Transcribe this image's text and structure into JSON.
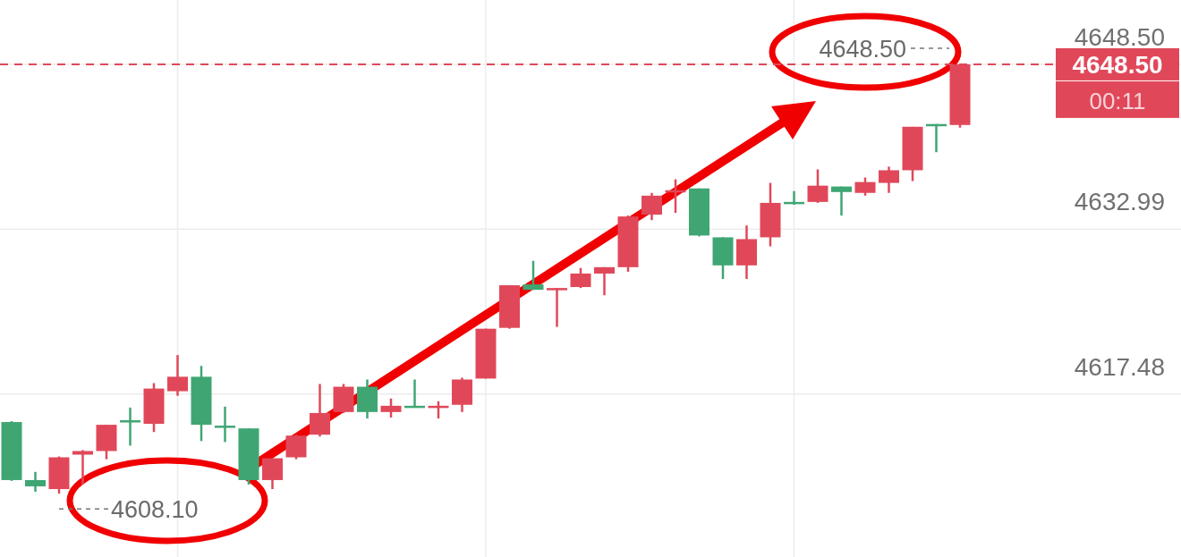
{
  "chart_data": {
    "type": "candlestick",
    "categories": [
      null,
      null,
      null,
      null,
      null,
      null,
      null,
      null,
      null,
      null,
      null,
      null,
      null,
      null,
      null,
      null,
      null,
      null,
      null,
      null,
      null,
      null,
      null,
      null,
      null,
      null,
      null,
      null,
      null,
      null,
      null,
      null,
      null,
      null,
      null,
      null,
      null,
      null,
      null,
      null,
      null
    ],
    "ohlc": [
      [
        4614.84,
        4614.92,
        4609.3,
        4609.38
      ],
      [
        4609.38,
        4610.15,
        4608.28,
        4608.79
      ],
      [
        4608.53,
        4611.6,
        4608.1,
        4611.52
      ],
      [
        4611.77,
        4612.2,
        4608.96,
        4612.11
      ],
      [
        4612.11,
        4614.58,
        4611.34,
        4614.58
      ],
      [
        4615.01,
        4616.2,
        4612.62,
        4614.92
      ],
      [
        4614.67,
        4618.5,
        4613.9,
        4617.99
      ],
      [
        4617.74,
        4621.14,
        4617.31,
        4619.1
      ],
      [
        4619.1,
        4620.12,
        4613.05,
        4614.58
      ],
      [
        4614.5,
        4616.29,
        4612.96,
        4614.33
      ],
      [
        4614.24,
        4614.24,
        4608.96,
        4609.38
      ],
      [
        4609.38,
        4611.43,
        4608.53,
        4611.43
      ],
      [
        4611.52,
        4613.65,
        4611.34,
        4613.56
      ],
      [
        4613.65,
        4618.42,
        4613.47,
        4615.69
      ],
      [
        4615.78,
        4618.42,
        4615.69,
        4618.16
      ],
      [
        4618.16,
        4618.84,
        4615.18,
        4615.78
      ],
      [
        4615.78,
        4617.05,
        4615.26,
        4616.37
      ],
      [
        4616.37,
        4618.84,
        4616.2,
        4616.2
      ],
      [
        4616.29,
        4616.8,
        4615.18,
        4616.37
      ],
      [
        4616.46,
        4619.01,
        4615.78,
        4618.84
      ],
      [
        4618.93,
        4623.62,
        4618.93,
        4623.62
      ],
      [
        4623.7,
        4627.71,
        4623.62,
        4627.71
      ],
      [
        4627.79,
        4630.01,
        4627.28,
        4627.28
      ],
      [
        4627.28,
        4627.45,
        4623.79,
        4627.45
      ],
      [
        4627.54,
        4629.33,
        4627.45,
        4628.81
      ],
      [
        4628.81,
        4629.41,
        4626.77,
        4629.41
      ],
      [
        4629.41,
        4634.27,
        4628.98,
        4634.18
      ],
      [
        4634.35,
        4636.4,
        4633.84,
        4636.14
      ],
      [
        4636.48,
        4637.68,
        4634.52,
        4636.65
      ],
      [
        4636.82,
        4636.82,
        4632.31,
        4632.39
      ],
      [
        4632.22,
        4632.22,
        4628.3,
        4629.58
      ],
      [
        4629.58,
        4633.33,
        4628.3,
        4632.05
      ],
      [
        4632.22,
        4637.34,
        4631.37,
        4635.46
      ],
      [
        4635.55,
        4636.57,
        4635.29,
        4635.46
      ],
      [
        4635.55,
        4638.61,
        4635.46,
        4637.08
      ],
      [
        4637.0,
        4637.0,
        4634.27,
        4636.48
      ],
      [
        4636.4,
        4637.85,
        4636.14,
        4637.42
      ],
      [
        4637.34,
        4638.87,
        4636.4,
        4638.53
      ],
      [
        4638.53,
        4642.62,
        4637.51,
        4642.62
      ],
      [
        4642.88,
        4642.88,
        4640.23,
        4642.71
      ],
      [
        4642.79,
        4648.5,
        4642.54,
        4648.5
      ]
    ],
    "colors": [
      "#3fa673",
      "#3fa673",
      "#e0485a",
      "#e0485a",
      "#e0485a",
      "#3fa673",
      "#e0485a",
      "#e0485a",
      "#3fa673",
      "#3fa673",
      "#3fa673",
      "#e0485a",
      "#e0485a",
      "#e0485a",
      "#e0485a",
      "#3fa673",
      "#e0485a",
      "#3fa673",
      "#e0485a",
      "#e0485a",
      "#e0485a",
      "#e0485a",
      "#3fa673",
      "#e0485a",
      "#e0485a",
      "#e0485a",
      "#e0485a",
      "#e0485a",
      "#e0485a",
      "#3fa673",
      "#3fa673",
      "#e0485a",
      "#e0485a",
      "#3fa673",
      "#e0485a",
      "#3fa673",
      "#e0485a",
      "#e0485a",
      "#e0485a",
      "#3fa673",
      "#e0485a"
    ],
    "ylim": [
      4602.14,
      4654.55
    ],
    "yticks": [
      4617.48,
      4632.99,
      {
        "value": 4648.5,
        "label": "4648.50"
      }
    ],
    "tick_labels": "y",
    "grid": true,
    "ref_lines": [
      {
        "axis": "y",
        "value": 4648.5,
        "label": "4648.50",
        "color": "#e0485a",
        "line_style": "dashed"
      }
    ],
    "annotations": [
      {
        "text": "4648.50",
        "y": 4648.5
      },
      "4608.10",
      "00:11"
    ]
  }
}
